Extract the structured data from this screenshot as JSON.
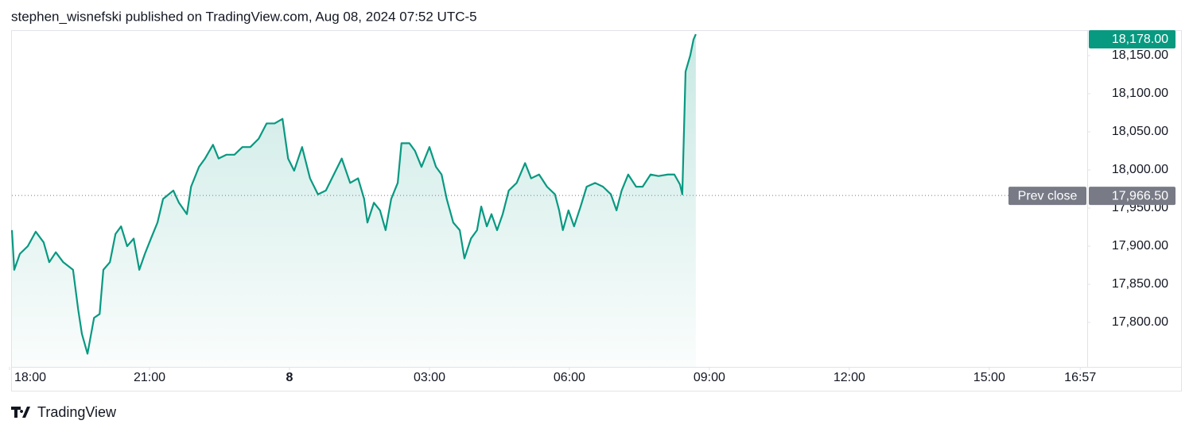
{
  "header": {
    "text": "stephen_wisnefski published on TradingView.com, Aug 08, 2024 07:52 UTC-5"
  },
  "chart_data": {
    "type": "area",
    "color": "#089981",
    "x": [
      18.05,
      18.1,
      18.22,
      18.39,
      18.56,
      18.73,
      18.85,
      18.99,
      19.15,
      19.36,
      19.47,
      19.55,
      19.67,
      19.81,
      19.93,
      20.01,
      20.15,
      20.27,
      20.39,
      20.52,
      20.66,
      20.78,
      20.9,
      21.03,
      21.17,
      21.29,
      21.41,
      21.51,
      21.63,
      21.8,
      21.89,
      22.06,
      22.19,
      22.36,
      22.48,
      22.65,
      22.82,
      22.99,
      23.16,
      23.34,
      23.51,
      23.68,
      23.85,
      23.97,
      24.1,
      24.27,
      24.44,
      24.61,
      24.78,
      24.95,
      25.12,
      25.3,
      25.47,
      25.6,
      25.67,
      25.81,
      25.94,
      26.06,
      26.18,
      26.32,
      26.4,
      26.57,
      26.69,
      26.83,
      27.0,
      27.14,
      27.26,
      27.37,
      27.51,
      27.65,
      27.75,
      27.89,
      28.02,
      28.11,
      28.23,
      28.33,
      28.45,
      28.57,
      28.7,
      28.87,
      29.05,
      29.18,
      29.35,
      29.52,
      29.69,
      29.78,
      29.86,
      29.98,
      30.1,
      30.24,
      30.37,
      30.55,
      30.72,
      30.89,
      31.01,
      31.12,
      31.26,
      31.43,
      31.57,
      31.74,
      31.91,
      32.11,
      32.25,
      32.37,
      32.42,
      32.49,
      32.59,
      32.66,
      32.71
    ],
    "values": [
      17921,
      17869,
      17890,
      17900,
      17919,
      17905,
      17879,
      17892,
      17879,
      17869,
      17817,
      17785,
      17759,
      17806,
      17811,
      17869,
      17879,
      17916,
      17926,
      17900,
      17910,
      17869,
      17890,
      17910,
      17931,
      17962,
      17968,
      17973,
      17957,
      17942,
      17978,
      18004,
      18015,
      18033,
      18015,
      18020,
      18020,
      18030,
      18030,
      18041,
      18061,
      18061,
      18067,
      18015,
      17999,
      18030,
      17989,
      17968,
      17973,
      17994,
      18015,
      17983,
      17989,
      17962,
      17931,
      17957,
      17947,
      17921,
      17962,
      17983,
      18035,
      18035,
      18025,
      18004,
      18030,
      18004,
      17994,
      17962,
      17931,
      17921,
      17884,
      17910,
      17921,
      17952,
      17926,
      17942,
      17921,
      17942,
      17973,
      17983,
      18009,
      17989,
      17994,
      17978,
      17968,
      17947,
      17921,
      17947,
      17926,
      17952,
      17978,
      17983,
      17978,
      17968,
      17947,
      17973,
      17994,
      17978,
      17978,
      17994,
      17992,
      17994,
      17994,
      17981,
      17968,
      18129,
      18150,
      18171,
      18178
    ],
    "xlim": [
      18.05,
      41.1
    ],
    "xticks": [
      {
        "value": 18,
        "label": "18:00"
      },
      {
        "value": 21,
        "label": "21:00"
      },
      {
        "value": 24,
        "label": "8"
      },
      {
        "value": 27,
        "label": "03:00"
      },
      {
        "value": 30,
        "label": "06:00"
      },
      {
        "value": 33,
        "label": "09:00"
      },
      {
        "value": 36,
        "label": "12:00"
      },
      {
        "value": 39,
        "label": "15:00"
      },
      {
        "value": 40.95,
        "label": "16:57"
      }
    ],
    "ylim": [
      17741.7,
      18183.3
    ],
    "yticks": [
      {
        "value": 17800,
        "label": "17,800.00"
      },
      {
        "value": 17850,
        "label": "17,850.00"
      },
      {
        "value": 17900,
        "label": "17,900.00"
      },
      {
        "value": 17950,
        "label": "17,950.00"
      },
      {
        "value": 18000,
        "label": "18,000.00"
      },
      {
        "value": 18050,
        "label": "18,050.00"
      },
      {
        "value": 18100,
        "label": "18,100.00"
      },
      {
        "value": 18150,
        "label": "18,150.00"
      }
    ],
    "reference_line": {
      "label": "Prev close",
      "value": 17966.5,
      "value_label": "17,966.50",
      "color": "#787b86"
    },
    "last_price": {
      "value": 18178,
      "label": "18,178.00"
    }
  },
  "footer": {
    "brand": "TradingView"
  }
}
